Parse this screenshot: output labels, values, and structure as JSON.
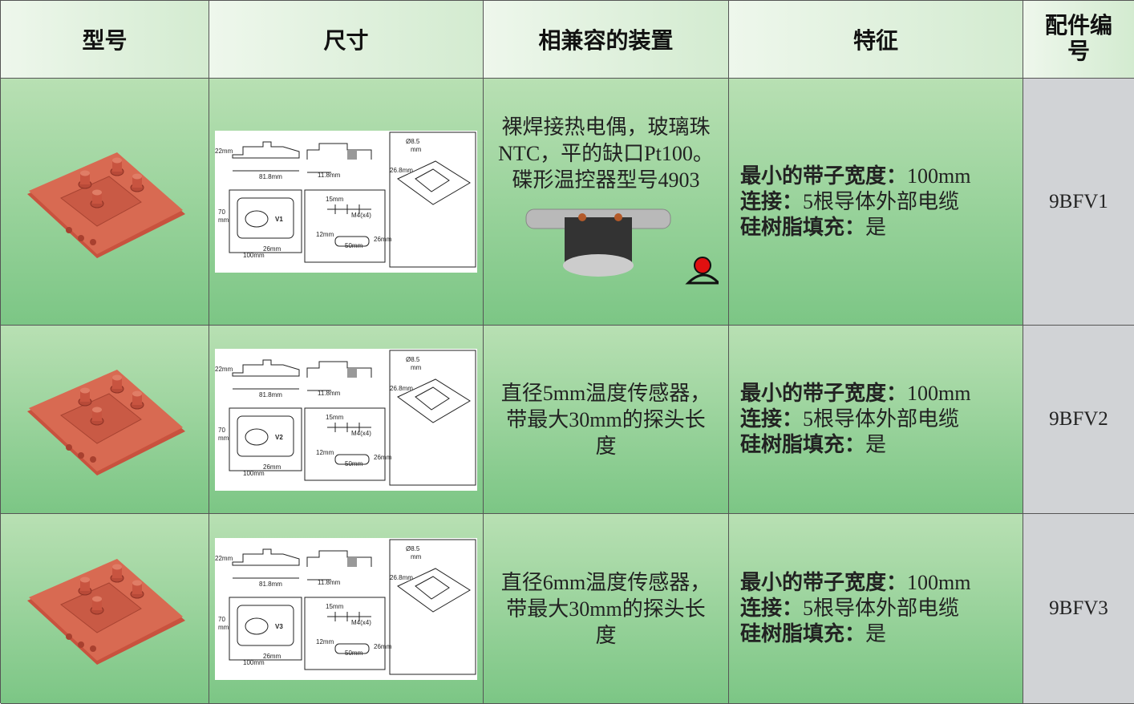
{
  "table": {
    "headers": [
      "型号",
      "尺寸",
      "相兼容的装置",
      "特征",
      "配件编号"
    ],
    "drawing_labels": [
      "22mm",
      "81.8mm",
      "11.8mm",
      "Ø8.5",
      "mm",
      "26.8mm",
      "70",
      "mm",
      "26mm",
      "100mm",
      "15mm",
      "M4(x4)",
      "12mm",
      "26mm",
      "50mm"
    ],
    "rows": [
      {
        "drawing_mark": "V1",
        "device": "裸焊接热电偶，玻璃珠NTC，平的缺口Pt100。碟形温控器型号4903",
        "features": [
          {
            "label": "最小的带子宽度：",
            "value": "100mm"
          },
          {
            "label": "连接：",
            "value": "5根导体外部电缆"
          },
          {
            "label": "硅树脂填充：",
            "value": "是"
          }
        ],
        "part": "9BFV1"
      },
      {
        "drawing_mark": "V2",
        "device": "直径5mm温度传感器，带最大30mm的探头长度",
        "features": [
          {
            "label": "最小的带子宽度：",
            "value": "100mm"
          },
          {
            "label": "连接：",
            "value": "5根导体外部电缆"
          },
          {
            "label": "硅树脂填充：",
            "value": "是"
          }
        ],
        "part": "9BFV2"
      },
      {
        "drawing_mark": "V3",
        "device": "直径6mm温度传感器，带最大30mm的探头长度",
        "features": [
          {
            "label": "最小的带子宽度：",
            "value": "100mm"
          },
          {
            "label": "连接：",
            "value": "5根导体外部电缆"
          },
          {
            "label": "硅树脂填充：",
            "value": "是"
          }
        ],
        "part": "9BFV3"
      }
    ]
  }
}
